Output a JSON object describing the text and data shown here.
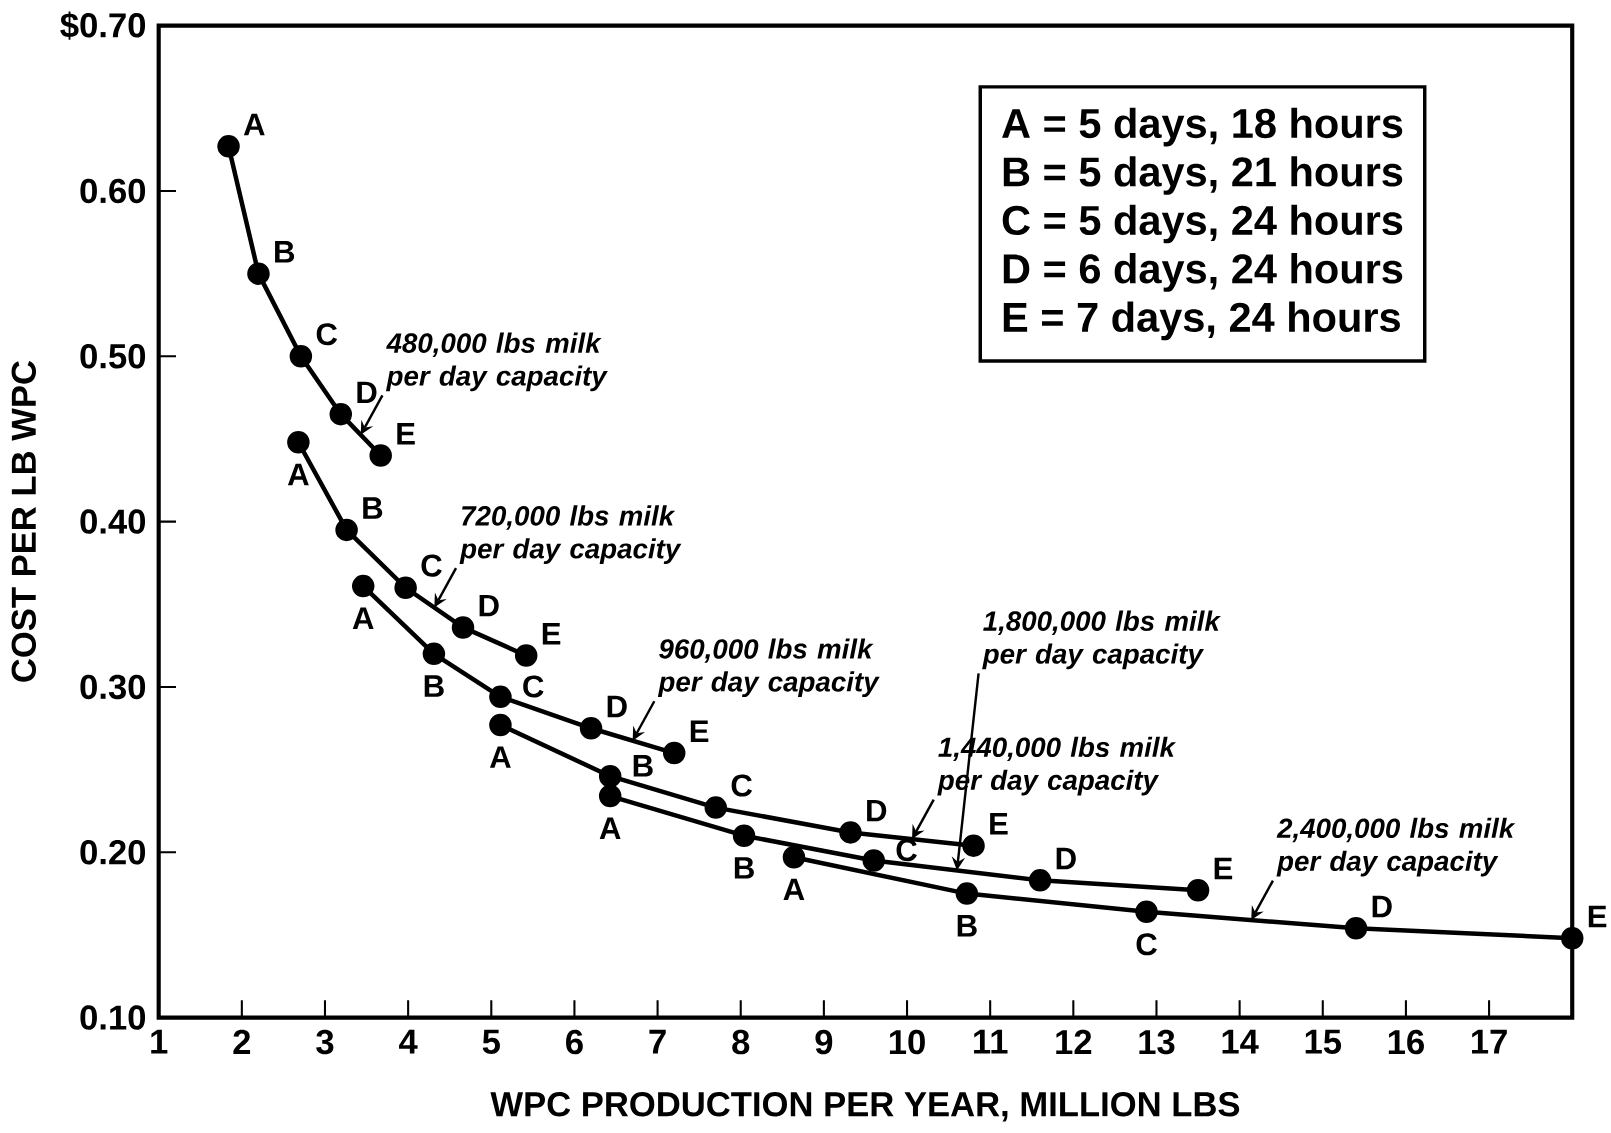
{
  "chart_data": {
    "type": "line",
    "xlabel": "WPC PRODUCTION PER YEAR, MILLION LBS",
    "ylabel": "COST PER LB WPC",
    "xlim": [
      1,
      18
    ],
    "ylim": [
      0.1,
      0.7
    ],
    "xticks": [
      1,
      2,
      3,
      4,
      5,
      6,
      7,
      8,
      9,
      10,
      11,
      12,
      13,
      14,
      15,
      16,
      17
    ],
    "yticks": [
      {
        "value": 0.1,
        "label": "0.10"
      },
      {
        "value": 0.2,
        "label": "0.20"
      },
      {
        "value": 0.3,
        "label": "0.30"
      },
      {
        "value": 0.4,
        "label": "0.40"
      },
      {
        "value": 0.5,
        "label": "0.50"
      },
      {
        "value": 0.6,
        "label": "0.60"
      },
      {
        "value": 0.7,
        "label": "$0.70"
      }
    ],
    "marker": "circle",
    "line_style": "solid",
    "series": [
      {
        "name": "480,000  lbs milk per day capacity",
        "color": "#000000",
        "x": [
          1.84,
          2.2,
          2.71,
          3.19,
          3.67
        ],
        "values": [
          0.627,
          0.55,
          0.5,
          0.465,
          0.44
        ]
      },
      {
        "name": "720,000  lbs milk per day capacity",
        "color": "#000000",
        "x": [
          2.68,
          3.26,
          3.97,
          4.66,
          5.42
        ],
        "values": [
          0.448,
          0.395,
          0.36,
          0.336,
          0.319
        ]
      },
      {
        "name": "960,000  lbs milk per day capacity",
        "color": "#000000",
        "x": [
          3.46,
          4.31,
          5.11,
          6.2,
          7.2
        ],
        "values": [
          0.361,
          0.32,
          0.294,
          0.275,
          0.26
        ]
      },
      {
        "name": "1,440,000  lbs milk per day capacity",
        "color": "#000000",
        "x": [
          5.11,
          6.43,
          7.7,
          9.32,
          10.8
        ],
        "values": [
          0.277,
          0.246,
          0.227,
          0.212,
          0.204
        ]
      },
      {
        "name": "1,800,000  lbs milk per day capacity",
        "color": "#000000",
        "x": [
          6.43,
          8.04,
          9.6,
          11.6,
          13.5
        ],
        "values": [
          0.234,
          0.21,
          0.195,
          0.183,
          0.177
        ]
      },
      {
        "name": "2,400,000  lbs milk per day capacity",
        "color": "#000000",
        "x": [
          8.64,
          10.72,
          12.88,
          15.4,
          18.0
        ],
        "values": [
          0.197,
          0.175,
          0.164,
          0.154,
          0.148
        ]
      }
    ],
    "annotations": [
      "A = 5 days, 18 hours",
      "B = 5 days, 21 hours",
      "C = 5 days, 24 hours",
      "D = 6 days, 24 hours",
      "E = 7 days, 24 hours",
      {
        "text": "A",
        "x": 1.84,
        "y": 0.627
      },
      {
        "text": "B",
        "x": 2.2,
        "y": 0.55
      },
      {
        "text": "C",
        "x": 2.71,
        "y": 0.5
      },
      {
        "text": "D",
        "x": 3.19,
        "y": 0.465
      },
      {
        "text": "E",
        "x": 3.67,
        "y": 0.44
      },
      {
        "text": "A",
        "x": 2.68,
        "y": 0.448
      },
      {
        "text": "B",
        "x": 3.26,
        "y": 0.395
      },
      {
        "text": "C",
        "x": 3.97,
        "y": 0.36
      },
      {
        "text": "D",
        "x": 4.66,
        "y": 0.336
      },
      {
        "text": "E",
        "x": 5.42,
        "y": 0.319
      },
      {
        "text": "A",
        "x": 3.46,
        "y": 0.361
      },
      {
        "text": "B",
        "x": 4.31,
        "y": 0.32
      },
      {
        "text": "C",
        "x": 5.11,
        "y": 0.294
      },
      {
        "text": "D",
        "x": 6.2,
        "y": 0.275
      },
      {
        "text": "E",
        "x": 7.2,
        "y": 0.26
      },
      {
        "text": "A",
        "x": 5.11,
        "y": 0.277
      },
      {
        "text": "B",
        "x": 6.43,
        "y": 0.246
      },
      {
        "text": "C",
        "x": 7.7,
        "y": 0.227
      },
      {
        "text": "D",
        "x": 9.32,
        "y": 0.212
      },
      {
        "text": "E",
        "x": 10.8,
        "y": 0.204
      },
      {
        "text": "A",
        "x": 6.43,
        "y": 0.234
      },
      {
        "text": "B",
        "x": 8.04,
        "y": 0.21
      },
      {
        "text": "C",
        "x": 9.6,
        "y": 0.195
      },
      {
        "text": "D",
        "x": 11.6,
        "y": 0.183
      },
      {
        "text": "E",
        "x": 13.5,
        "y": 0.177
      },
      {
        "text": "A",
        "x": 8.64,
        "y": 0.197
      },
      {
        "text": "B",
        "x": 10.72,
        "y": 0.175
      },
      {
        "text": "C",
        "x": 12.88,
        "y": 0.164
      },
      {
        "text": "D",
        "x": 15.4,
        "y": 0.154
      },
      {
        "text": "E",
        "x": 18.0,
        "y": 0.148
      }
    ]
  }
}
